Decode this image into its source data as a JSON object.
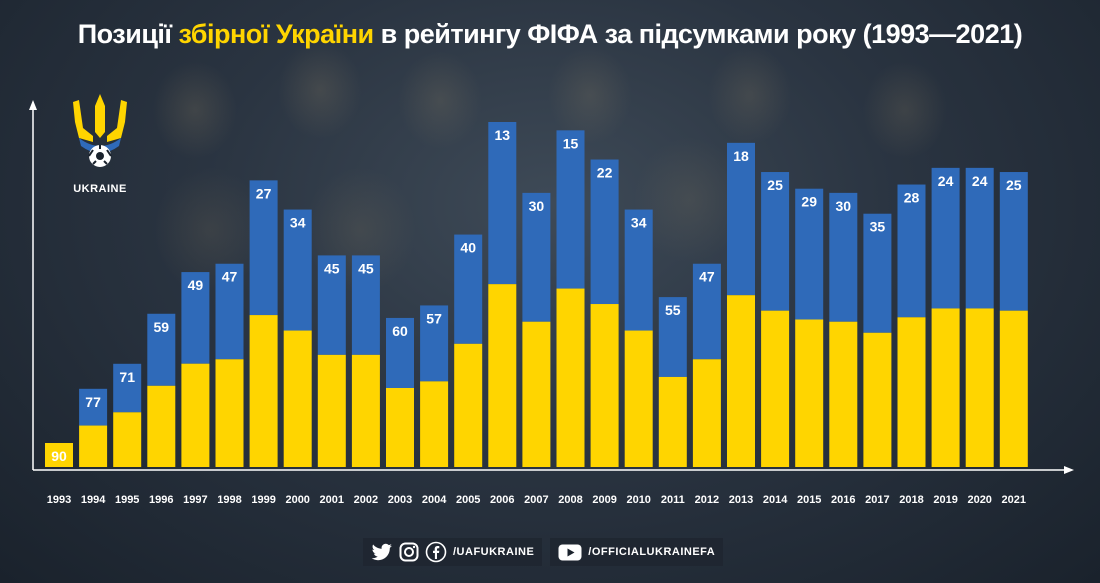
{
  "title": {
    "part1": "Позиції ",
    "highlight": "збірної України",
    "part2": " в рейтингу ФІФА за підсумками року (1993—2021)"
  },
  "logo": {
    "text": "UKRAINE"
  },
  "colors": {
    "blue": "#2f6ab9",
    "yellow": "#ffd500",
    "title_highlight": "#ffd500"
  },
  "chart_data": {
    "type": "bar",
    "title": "Позиції збірної України в рейтингу ФІФА за підсумками року (1993—2021)",
    "xlabel": "",
    "ylabel": "",
    "categories": [
      "1993",
      "1994",
      "1995",
      "1996",
      "1997",
      "1998",
      "1999",
      "2000",
      "2001",
      "2002",
      "2003",
      "2004",
      "2005",
      "2006",
      "2007",
      "2008",
      "2009",
      "2010",
      "2011",
      "2012",
      "2013",
      "2014",
      "2015",
      "2016",
      "2017",
      "2018",
      "2019",
      "2020",
      "2021"
    ],
    "values": [
      90,
      77,
      71,
      59,
      49,
      47,
      27,
      34,
      45,
      45,
      60,
      57,
      40,
      13,
      30,
      15,
      22,
      34,
      55,
      47,
      18,
      25,
      29,
      30,
      35,
      28,
      24,
      24,
      25
    ],
    "note": "Bar height inversely proportional to FIFA ranking position (lower rank number = taller bar)",
    "rank_scale": [
      0,
      100
    ]
  },
  "footer": {
    "social_handle": "/UAFUKRAINE",
    "youtube_handle": "/OFFICIALUKRAINEFA",
    "icons": [
      "twitter-icon",
      "instagram-icon",
      "facebook-icon",
      "youtube-icon"
    ]
  }
}
